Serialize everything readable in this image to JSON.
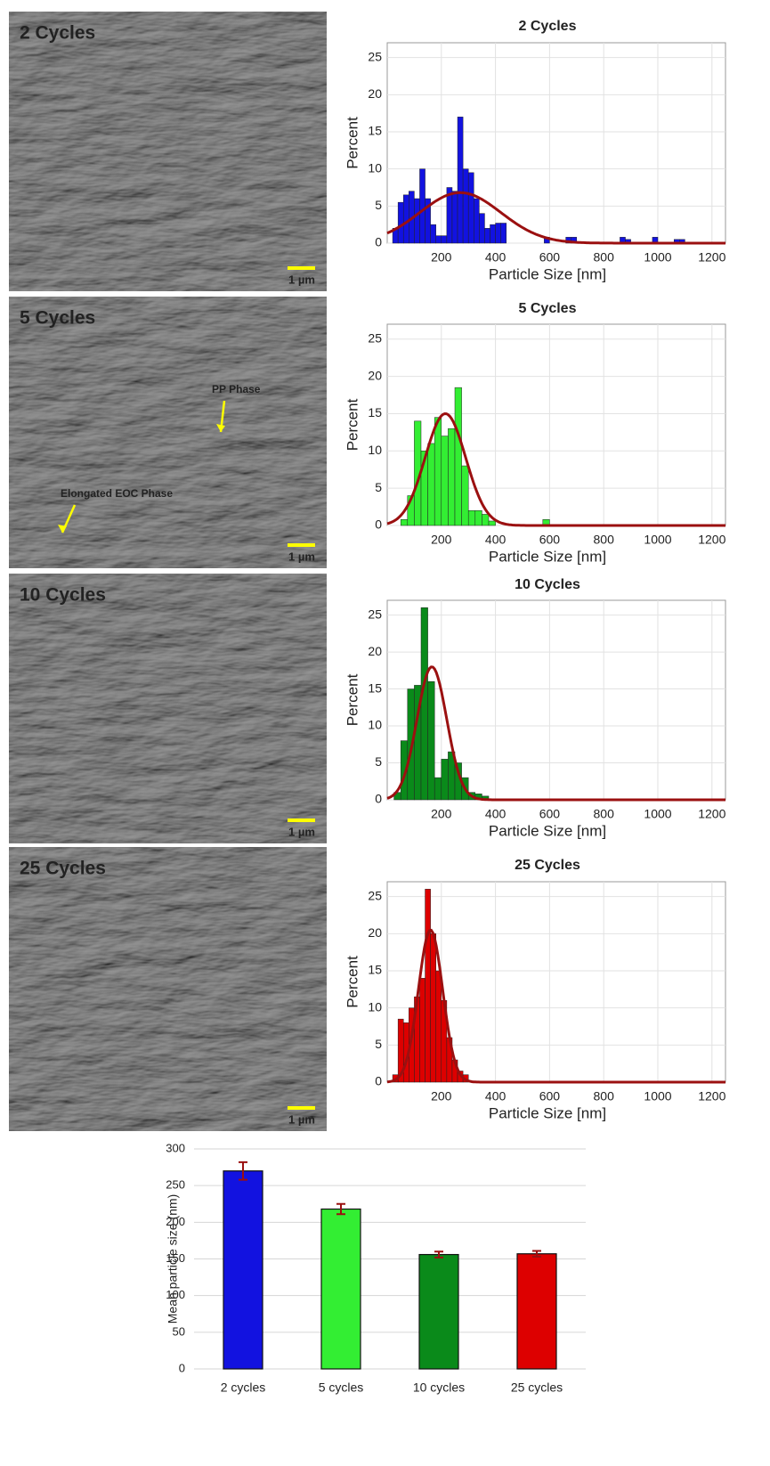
{
  "images": [
    {
      "label": "2 Cycles",
      "scale": "1 µm"
    },
    {
      "label": "5 Cycles",
      "scale": "1 µm",
      "annotations": [
        "PP Phase",
        "Elongated EOC Phase"
      ]
    },
    {
      "label": "10 Cycles",
      "scale": "1 µm"
    },
    {
      "label": "25 Cycles",
      "scale": "1 µm"
    }
  ],
  "chart_data": [
    {
      "type": "histogram",
      "title": "2 Cycles",
      "x_label": "Particle Size [nm]",
      "y_label": "Percent",
      "color": "#1212e0",
      "fit_color": "#9b1010",
      "bins": [
        20,
        40,
        60,
        80,
        100,
        120,
        140,
        160,
        180,
        200,
        220,
        240,
        260,
        280,
        300,
        320,
        340,
        360,
        380,
        400,
        420,
        440,
        460,
        480,
        500,
        520,
        540,
        560,
        580,
        600,
        620,
        640,
        660,
        680,
        700,
        720,
        740,
        760,
        780,
        800,
        820,
        840,
        860,
        880,
        900,
        920,
        940,
        960,
        980,
        1000,
        1020,
        1040,
        1060,
        1080,
        1100,
        1120
      ],
      "counts": [
        2,
        5.5,
        6.5,
        7,
        6,
        10,
        6,
        2.5,
        1,
        1,
        7.5,
        7,
        17,
        10,
        9.5,
        6,
        4,
        2,
        2.5,
        2.7,
        2.7,
        0,
        0,
        0,
        0,
        0,
        0,
        0,
        0.8,
        0,
        0,
        0,
        0.8,
        0.8,
        0,
        0,
        0,
        0,
        0,
        0,
        0,
        0,
        0.8,
        0.5,
        0,
        0,
        0,
        0,
        0.8,
        0,
        0,
        0,
        0.5,
        0.5,
        0
      ],
      "fit": {
        "mean": 270,
        "sd": 150,
        "peak": 6.8
      },
      "xlim": [
        0,
        1250
      ],
      "ylim": [
        0,
        27
      ],
      "xticks": [
        200,
        400,
        600,
        800,
        1000,
        1200
      ],
      "yticks": [
        0,
        5,
        10,
        15,
        20,
        25
      ],
      "grid": true
    },
    {
      "type": "histogram",
      "title": "5 Cycles",
      "x_label": "Particle Size [nm]",
      "y_label": "Percent",
      "color": "#33ee33",
      "fit_color": "#9b1010",
      "bins": [
        50,
        75,
        100,
        125,
        150,
        175,
        200,
        225,
        250,
        275,
        300,
        325,
        350,
        375,
        400,
        425,
        450,
        475,
        500,
        525,
        550,
        575,
        600
      ],
      "counts": [
        0.8,
        4,
        14,
        10,
        11,
        14.5,
        12,
        13,
        18.5,
        8,
        2,
        2,
        1.5,
        0.6,
        0,
        0,
        0,
        0,
        0,
        0,
        0,
        0.8
      ],
      "fit": {
        "mean": 215,
        "sd": 75,
        "peak": 15
      },
      "xlim": [
        0,
        1250
      ],
      "ylim": [
        0,
        27
      ],
      "xticks": [
        200,
        400,
        600,
        800,
        1000,
        1200
      ],
      "yticks": [
        0,
        5,
        10,
        15,
        20,
        25
      ],
      "grid": true
    },
    {
      "type": "histogram",
      "title": "10 Cycles",
      "x_label": "Particle Size [nm]",
      "y_label": "Percent",
      "color": "#0a8a1a",
      "fit_color": "#9b1010",
      "bins": [
        25,
        50,
        75,
        100,
        125,
        150,
        175,
        200,
        225,
        250,
        275,
        300,
        325,
        350,
        375,
        400
      ],
      "counts": [
        1,
        8,
        15,
        15.5,
        26,
        16,
        3,
        5.5,
        6.5,
        5,
        3,
        1,
        0.8,
        0.5,
        0
      ],
      "fit": {
        "mean": 165,
        "sd": 55,
        "peak": 18
      },
      "xlim": [
        0,
        1250
      ],
      "ylim": [
        0,
        27
      ],
      "xticks": [
        200,
        400,
        600,
        800,
        1000,
        1200
      ],
      "yticks": [
        0,
        5,
        10,
        15,
        20,
        25
      ],
      "grid": true
    },
    {
      "type": "histogram",
      "title": "25 Cycles",
      "x_label": "Particle Size [nm]",
      "y_label": "Percent",
      "color": "#dd0000",
      "fit_color": "#9b1010",
      "bins": [
        20,
        40,
        60,
        80,
        100,
        120,
        140,
        160,
        180,
        200,
        220,
        240,
        260,
        280,
        300
      ],
      "counts": [
        1,
        8.5,
        8,
        10,
        11.5,
        14,
        26,
        20,
        15,
        11,
        6,
        3,
        1.5,
        1
      ],
      "fit": {
        "mean": 160,
        "sd": 45,
        "peak": 20.5
      },
      "xlim": [
        0,
        1250
      ],
      "ylim": [
        0,
        27
      ],
      "xticks": [
        200,
        400,
        600,
        800,
        1000,
        1200
      ],
      "yticks": [
        0,
        5,
        10,
        15,
        20,
        25
      ],
      "grid": true
    },
    {
      "type": "bar",
      "y_label": "Mean particle size (nm)",
      "categories": [
        "2 cycles",
        "5 cycles",
        "10 cycles",
        "25 cycles"
      ],
      "values": [
        270,
        218,
        156,
        157
      ],
      "errors": [
        12,
        7,
        4,
        4
      ],
      "colors": [
        "#1212e0",
        "#33ee33",
        "#0a8a1a",
        "#dd0000"
      ],
      "error_color": "#9b1010",
      "ylim": [
        0,
        300
      ],
      "yticks": [
        0,
        50,
        100,
        150,
        200,
        250,
        300
      ],
      "grid": true
    }
  ]
}
